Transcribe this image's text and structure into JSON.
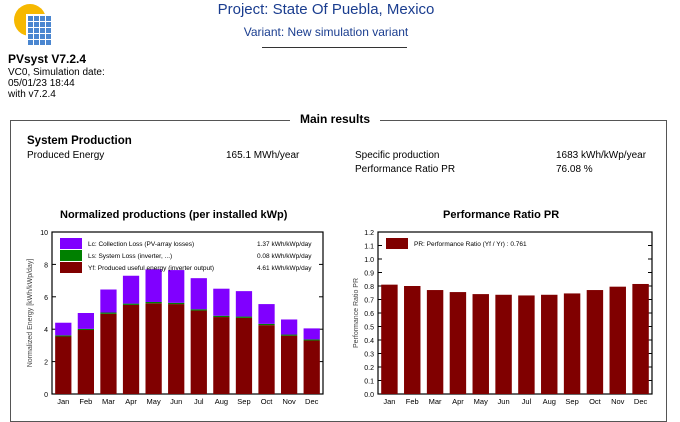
{
  "header": {
    "title": "Project: State Of Puebla, Mexico",
    "variant": "Variant: New simulation variant"
  },
  "brand": {
    "name": "PVsyst V7.2.4",
    "line1": "VC0, Simulation date:",
    "line2": "05/01/23 18:44",
    "line3": "with v7.2.4"
  },
  "section": {
    "title": "Main results",
    "subtitle": "System Production",
    "produced_label": "Produced Energy",
    "produced_value": "165.1 MWh/year",
    "specific_label": "Specific production",
    "specific_value": "1683 kWh/kWp/year",
    "pr_label": "Performance Ratio PR",
    "pr_value": "76.08 %"
  },
  "colors": {
    "lc": "#8000ff",
    "ls": "#008000",
    "yf": "#800000",
    "pr": "#800000"
  },
  "chart_data": [
    {
      "type": "bar",
      "stacked": true,
      "title": "Normalized productions (per installed kWp)",
      "ylabel": "Normalized Energy [kWh/kWp/day]",
      "ylim": [
        0,
        10
      ],
      "yticks": [
        0,
        2,
        4,
        6,
        8,
        10
      ],
      "categories": [
        "Jan",
        "Feb",
        "Mar",
        "Apr",
        "May",
        "Jun",
        "Jul",
        "Aug",
        "Sep",
        "Oct",
        "Nov",
        "Dec"
      ],
      "legend_placement": "top-left",
      "series": [
        {
          "name": "Yf: Produced useful energy  (inverter output)",
          "annual": "4.61 kWh/kWp/day",
          "color": "#800000",
          "values": [
            3.55,
            3.95,
            4.95,
            5.5,
            5.6,
            5.55,
            5.15,
            4.75,
            4.7,
            4.25,
            3.6,
            3.3
          ]
        },
        {
          "name": "Ls: System Loss  (inverter, ...)",
          "annual": "0.08 kWh/kWp/day",
          "color": "#008000",
          "values": [
            0.07,
            0.07,
            0.08,
            0.08,
            0.08,
            0.08,
            0.08,
            0.08,
            0.08,
            0.08,
            0.07,
            0.07
          ]
        },
        {
          "name": "Lc: Collection Loss (PV-array losses)",
          "annual": "1.37 kWh/kWp/day",
          "color": "#8000ff",
          "values": [
            0.78,
            0.98,
            1.42,
            1.72,
            2.02,
            2.02,
            1.92,
            1.67,
            1.57,
            1.22,
            0.93,
            0.68
          ]
        }
      ]
    },
    {
      "type": "bar",
      "title": "Performance Ratio PR",
      "ylabel": "Performance Ratio PR",
      "ylim": [
        0,
        1.2
      ],
      "yticks": [
        0,
        0.1,
        0.2,
        0.3,
        0.4,
        0.5,
        0.6,
        0.7,
        0.8,
        0.9,
        1.0,
        1.1,
        1.2
      ],
      "categories": [
        "Jan",
        "Feb",
        "Mar",
        "Apr",
        "May",
        "Jun",
        "Jul",
        "Aug",
        "Sep",
        "Oct",
        "Nov",
        "Dec"
      ],
      "legend_placement": "top-left",
      "series": [
        {
          "name": "PR: Performance Ratio (Yf / Yr) :  0.761",
          "color": "#800000",
          "values": [
            0.81,
            0.8,
            0.77,
            0.755,
            0.74,
            0.735,
            0.73,
            0.735,
            0.745,
            0.77,
            0.795,
            0.815
          ]
        }
      ]
    }
  ]
}
